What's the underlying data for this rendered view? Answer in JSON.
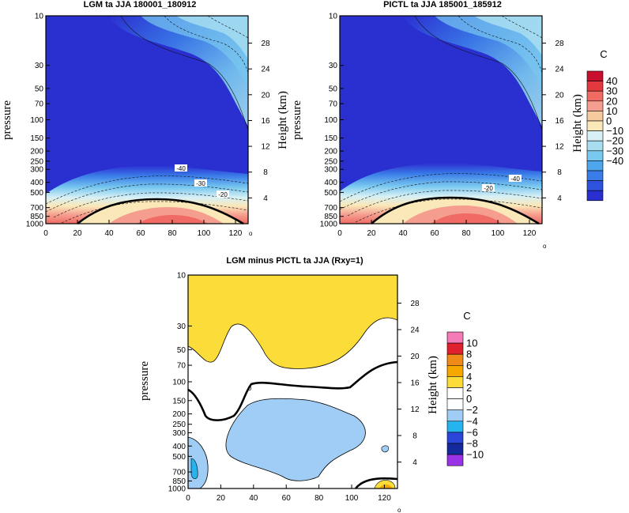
{
  "chart_data": [
    {
      "type": "heatmap",
      "title": "LGM ta JJA 180001_180912",
      "ylabel": "pressure",
      "ylabel_right": "Height (km)",
      "x_ticks": [
        "0",
        "20",
        "40",
        "60",
        "80",
        "100",
        "120"
      ],
      "p_ticks": [
        "10",
        "30",
        "50",
        "70",
        "100",
        "150",
        "200",
        "250",
        "300",
        "400",
        "500",
        "700",
        "850",
        "1000"
      ],
      "height_ticks": [
        "4",
        "8",
        "12",
        "16",
        "20",
        "24",
        "28"
      ],
      "xlim": [
        0,
        128
      ],
      "ylim": [
        1000,
        10
      ],
      "x_unit_mark": "o",
      "contour_labels": [
        "-40",
        "-30",
        "-20"
      ]
    },
    {
      "type": "heatmap",
      "title": "PICTL ta JJA 185001_185912",
      "ylabel": "pressure",
      "ylabel_right": "Height (km)",
      "x_ticks": [
        "0",
        "20",
        "40",
        "60",
        "80",
        "100",
        "120"
      ],
      "p_ticks": [
        "10",
        "30",
        "50",
        "70",
        "100",
        "150",
        "200",
        "250",
        "300",
        "400",
        "500",
        "700",
        "850",
        "1000"
      ],
      "height_ticks": [
        "4",
        "8",
        "12",
        "16",
        "20",
        "24",
        "28"
      ],
      "xlim": [
        0,
        128
      ],
      "ylim": [
        1000,
        10
      ],
      "x_unit_mark": "o",
      "contour_labels": [
        "-40",
        "-20"
      ],
      "colorbar": {
        "unit": "C",
        "labels": [
          "40",
          "30",
          "20",
          "10",
          "0",
          "−10",
          "−20",
          "−30",
          "−40"
        ],
        "colors": [
          "#c8102e",
          "#e2383e",
          "#ef6b63",
          "#f59e8f",
          "#f7c99e",
          "#fbe8b8",
          "#d7f0f5",
          "#a9def0",
          "#79c8ef",
          "#4ea7ec",
          "#3a7ce8",
          "#2f52de",
          "#2a2fd0"
        ]
      }
    },
    {
      "type": "heatmap",
      "title": "LGM minus PICTL ta JJA (Rxy=1)",
      "ylabel": "pressure",
      "ylabel_right": "Height (km)",
      "x_ticks": [
        "0",
        "20",
        "40",
        "60",
        "80",
        "100",
        "120"
      ],
      "p_ticks": [
        "10",
        "30",
        "50",
        "70",
        "100",
        "150",
        "200",
        "250",
        "300",
        "400",
        "500",
        "700",
        "850",
        "1000"
      ],
      "height_ticks": [
        "4",
        "8",
        "12",
        "16",
        "20",
        "24",
        "28"
      ],
      "xlim": [
        0,
        128
      ],
      "ylim": [
        1000,
        10
      ],
      "x_unit_mark": "o",
      "contour_labels": [
        "0"
      ],
      "colorbar": {
        "unit": "C",
        "labels": [
          "10",
          "8",
          "6",
          "4",
          "2",
          "0",
          "−2",
          "−4",
          "−6",
          "−8",
          "−10"
        ],
        "colors": [
          "#f47ab8",
          "#e0202c",
          "#f08a18",
          "#f6a800",
          "#fbdc38",
          "#ffffff",
          "#ffffff",
          "#9fcdf5",
          "#25b4ee",
          "#2a45d8",
          "#142a9c",
          "#9a32e8"
        ]
      }
    }
  ]
}
